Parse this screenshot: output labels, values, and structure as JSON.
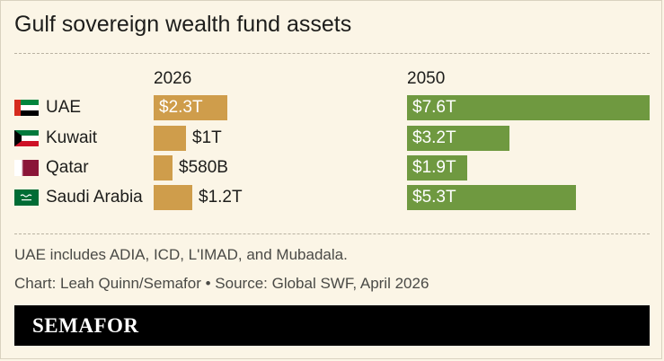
{
  "title": "Gulf sovereign wealth fund assets",
  "chart_data": {
    "type": "bar",
    "categories": [
      "UAE",
      "Kuwait",
      "Qatar",
      "Saudi Arabia"
    ],
    "series": [
      {
        "name": "2026",
        "values": [
          2.3,
          1.0,
          0.58,
          1.2
        ],
        "labels": [
          "$2.3T",
          "$1T",
          "$580B",
          "$1.2T"
        ],
        "color": "#cf9d4b"
      },
      {
        "name": "2050",
        "values": [
          7.6,
          3.2,
          1.9,
          5.3
        ],
        "labels": [
          "$7.6T",
          "$3.2T",
          "$1.9T",
          "$5.3T"
        ],
        "color": "#6f9940"
      }
    ],
    "unit": "trillion USD"
  },
  "flags": [
    "uae-flag-icon",
    "kuwait-flag-icon",
    "qatar-flag-icon",
    "saudi-arabia-flag-icon"
  ],
  "notes": {
    "note": "UAE includes ADIA, ICD, L'IMAD, and Mubadala.",
    "source": "Chart: Leah Quinn/Semafor • Source: Global SWF, April 2026"
  },
  "footer": {
    "brand": "SEMAFOR"
  }
}
